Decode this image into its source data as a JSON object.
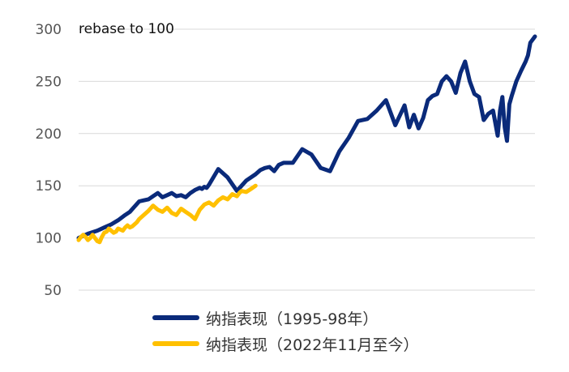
{
  "chart_data": {
    "type": "line",
    "annotation": "rebase to 100",
    "ylim": [
      50,
      300
    ],
    "yticks": [
      "300",
      "250",
      "200",
      "150",
      "100",
      "50"
    ],
    "ytick_values": [
      300,
      250,
      200,
      150,
      100,
      50
    ],
    "grid": true,
    "legend_position": "bottom",
    "x_unit": "trading-day index (approx.)",
    "series": [
      {
        "name": "纳指表现（1995-98年）",
        "color": "#0a2a7a",
        "x": [
          0,
          20,
          40,
          55,
          70,
          85,
          100,
          110,
          120,
          130,
          140,
          150,
          160,
          170,
          180,
          190,
          200,
          210,
          220,
          230,
          240,
          250,
          260,
          265,
          270,
          275,
          280,
          300,
          320,
          340,
          360,
          380,
          390,
          400,
          410,
          420,
          430,
          440,
          460,
          480,
          500,
          520,
          540,
          560,
          580,
          600,
          620,
          640,
          660,
          680,
          700,
          710,
          720,
          730,
          740,
          750,
          760,
          770,
          780,
          790,
          800,
          810,
          820,
          830,
          840,
          850,
          860,
          870,
          880,
          890,
          900,
          905,
          910,
          915,
          920,
          925,
          930,
          940,
          950,
          960,
          965,
          970,
          980
        ],
        "values": [
          100,
          104,
          107,
          110,
          113,
          117,
          122,
          125,
          130,
          135,
          136,
          137,
          140,
          143,
          139,
          141,
          143,
          140,
          141,
          139,
          143,
          146,
          148,
          147,
          149,
          148,
          151,
          166,
          158,
          145,
          155,
          161,
          165,
          167,
          168,
          164,
          170,
          172,
          172,
          185,
          180,
          167,
          164,
          183,
          196,
          212,
          214,
          222,
          232,
          208,
          227,
          206,
          218,
          205,
          215,
          232,
          236,
          238,
          250,
          255,
          250,
          239,
          258,
          269,
          250,
          238,
          235,
          213,
          219,
          222,
          198,
          222,
          235,
          206,
          193,
          228,
          236,
          250,
          260,
          269,
          275,
          287,
          293
        ]
      },
      {
        "name": "纳指表现（2022年11月至今）",
        "color": "#ffc000",
        "x": [
          0,
          5,
          10,
          15,
          20,
          25,
          30,
          35,
          40,
          45,
          50,
          55,
          60,
          65,
          70,
          75,
          80,
          85,
          90,
          95,
          100,
          105,
          110,
          115,
          120,
          125,
          130,
          140,
          150,
          160,
          170,
          180,
          190,
          200,
          210,
          220,
          230,
          240,
          250,
          260,
          270,
          280,
          290,
          300,
          310,
          320,
          330,
          340,
          345,
          350,
          360,
          370,
          380
        ],
        "values": [
          98,
          101,
          103,
          101,
          98,
          100,
          103,
          100,
          97,
          96,
          101,
          105,
          106,
          109,
          107,
          105,
          106,
          109,
          108,
          107,
          110,
          112,
          110,
          111,
          113,
          115,
          118,
          122,
          126,
          131,
          127,
          125,
          129,
          124,
          122,
          128,
          125,
          122,
          118,
          127,
          132,
          134,
          131,
          136,
          139,
          137,
          142,
          140,
          143,
          145,
          144,
          147,
          150
        ]
      }
    ]
  }
}
